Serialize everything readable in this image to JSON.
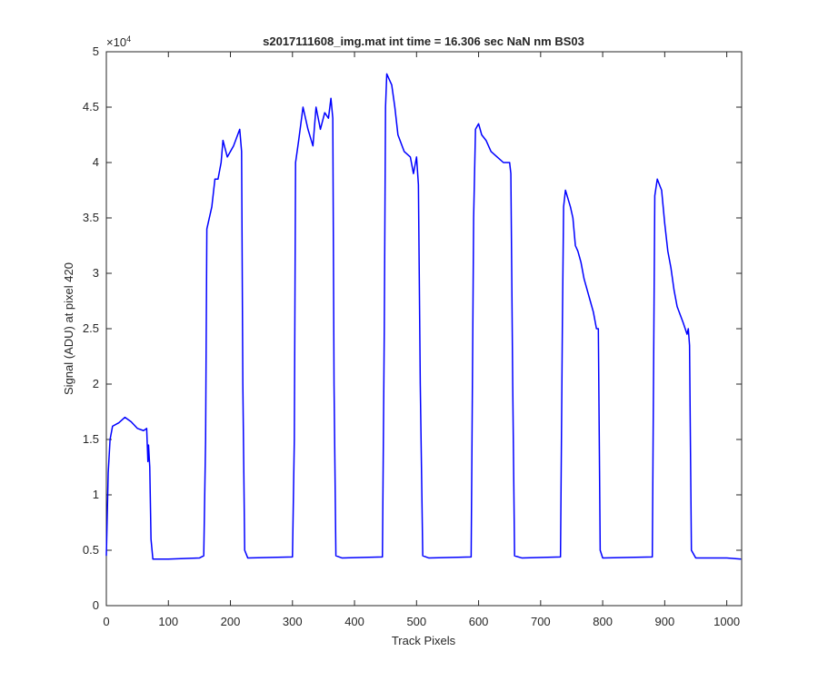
{
  "chart_data": {
    "type": "line",
    "title": "s2017111608_img.mat int time = 16.306 sec  NaN nm BS03",
    "x_label": "Track Pixels",
    "y_label": "Signal (ADU) at pixel 420",
    "y_multiplier_base": "×10",
    "y_multiplier_exponent": "4",
    "xlim": [
      0,
      1024
    ],
    "ylim": [
      0,
      5
    ],
    "xticks": [
      0,
      100,
      200,
      300,
      400,
      500,
      600,
      700,
      800,
      900,
      1000
    ],
    "yticks": [
      0,
      0.5,
      1,
      1.5,
      2,
      2.5,
      3,
      3.5,
      4,
      4.5,
      5
    ],
    "series": [
      {
        "color": "#0000ff",
        "x": [
          0,
          3,
          6,
          10,
          20,
          30,
          40,
          50,
          60,
          65,
          67,
          68,
          70,
          72,
          75,
          100,
          150,
          157,
          160,
          162,
          170,
          175,
          180,
          185,
          188,
          195,
          205,
          215,
          218,
          220,
          223,
          228,
          300,
          303,
          305,
          310,
          317,
          325,
          333,
          338,
          345,
          352,
          358,
          362,
          365,
          367,
          370,
          380,
          445,
          448,
          450,
          452,
          460,
          465,
          470,
          480,
          490,
          495,
          500,
          503,
          506,
          510,
          520,
          588,
          592,
          595,
          600,
          605,
          612,
          620,
          630,
          640,
          650,
          652,
          655,
          658,
          670,
          732,
          735,
          737,
          740,
          748,
          752,
          756,
          760,
          765,
          770,
          775,
          780,
          785,
          790,
          793,
          796,
          800,
          880,
          884,
          888,
          895,
          900,
          905,
          910,
          915,
          920,
          930,
          936,
          938,
          940,
          943,
          950,
          1000,
          1023
        ],
        "values": [
          0.45,
          1.2,
          1.5,
          1.62,
          1.65,
          1.7,
          1.66,
          1.6,
          1.58,
          1.6,
          1.3,
          1.45,
          1.25,
          0.6,
          0.42,
          0.42,
          0.43,
          0.45,
          1.5,
          3.4,
          3.6,
          3.85,
          3.85,
          4.0,
          4.2,
          4.05,
          4.15,
          4.3,
          4.1,
          2.0,
          0.5,
          0.43,
          0.44,
          1.5,
          4.0,
          4.2,
          4.5,
          4.3,
          4.15,
          4.5,
          4.3,
          4.45,
          4.4,
          4.58,
          4.4,
          2.0,
          0.45,
          0.43,
          0.44,
          2.5,
          4.5,
          4.8,
          4.7,
          4.5,
          4.25,
          4.1,
          4.05,
          3.9,
          4.05,
          3.8,
          2.0,
          0.45,
          0.43,
          0.44,
          3.5,
          4.3,
          4.35,
          4.25,
          4.2,
          4.1,
          4.05,
          4.0,
          4.0,
          3.9,
          2.0,
          0.45,
          0.43,
          0.44,
          2.5,
          3.6,
          3.75,
          3.6,
          3.5,
          3.25,
          3.2,
          3.1,
          2.95,
          2.85,
          2.75,
          2.65,
          2.5,
          2.5,
          0.5,
          0.43,
          0.44,
          3.7,
          3.85,
          3.75,
          3.45,
          3.2,
          3.05,
          2.85,
          2.7,
          2.55,
          2.45,
          2.5,
          2.35,
          0.5,
          0.43,
          0.43,
          0.42
        ]
      }
    ]
  }
}
